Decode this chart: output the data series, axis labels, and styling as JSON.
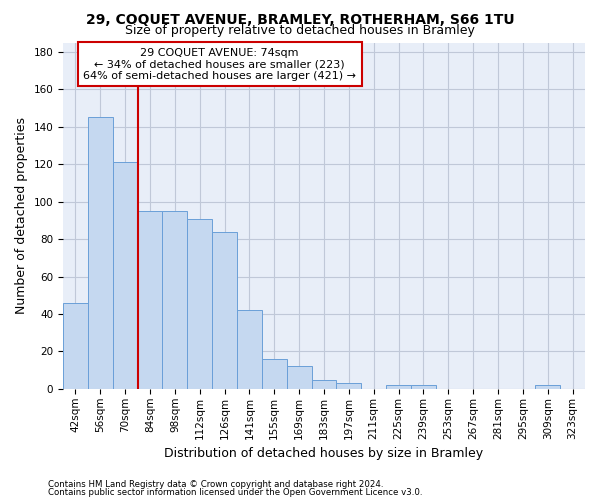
{
  "title1": "29, COQUET AVENUE, BRAMLEY, ROTHERHAM, S66 1TU",
  "title2": "Size of property relative to detached houses in Bramley",
  "xlabel": "Distribution of detached houses by size in Bramley",
  "ylabel": "Number of detached properties",
  "categories": [
    "42sqm",
    "56sqm",
    "70sqm",
    "84sqm",
    "98sqm",
    "112sqm",
    "126sqm",
    "141sqm",
    "155sqm",
    "169sqm",
    "183sqm",
    "197sqm",
    "211sqm",
    "225sqm",
    "239sqm",
    "253sqm",
    "267sqm",
    "281sqm",
    "295sqm",
    "309sqm",
    "323sqm"
  ],
  "values": [
    46,
    145,
    121,
    95,
    95,
    91,
    84,
    42,
    16,
    12,
    5,
    3,
    0,
    2,
    2,
    0,
    0,
    0,
    0,
    2,
    0
  ],
  "bar_color": "#c5d8f0",
  "bar_edge_color": "#6a9fd8",
  "vline_color": "#cc0000",
  "annotation_text": "29 COQUET AVENUE: 74sqm\n← 34% of detached houses are smaller (223)\n64% of semi-detached houses are larger (421) →",
  "annotation_box_color": "white",
  "annotation_box_edge": "#cc0000",
  "ylim": [
    0,
    185
  ],
  "yticks": [
    0,
    20,
    40,
    60,
    80,
    100,
    120,
    140,
    160,
    180
  ],
  "footer1": "Contains HM Land Registry data © Crown copyright and database right 2024.",
  "footer2": "Contains public sector information licensed under the Open Government Licence v3.0.",
  "bg_color": "#e8eef8",
  "grid_color": "#c0c8d8",
  "title_fontsize": 10,
  "subtitle_fontsize": 9,
  "axis_label_fontsize": 9,
  "tick_fontsize": 7.5,
  "annotation_fontsize": 8
}
